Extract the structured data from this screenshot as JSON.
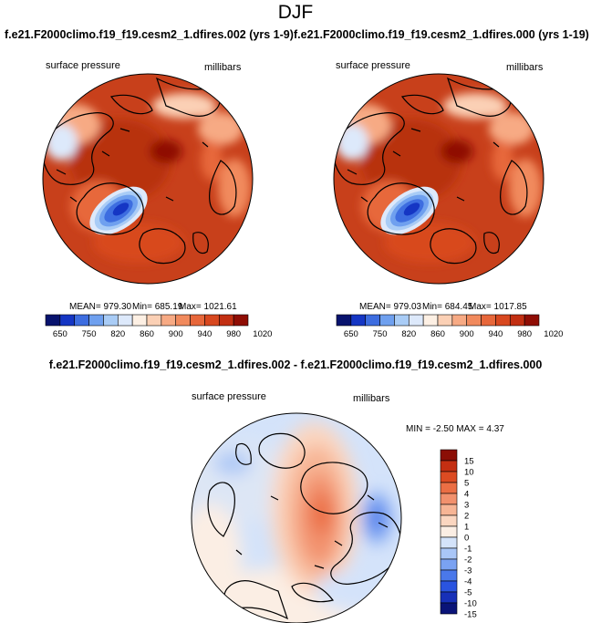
{
  "header": {
    "season": "DJF",
    "case_left": "f.e21.F2000climo.f19_f19.cesm2_1.dfires.002 (yrs 1-9)",
    "case_right": "f.e21.F2000climo.f19_f19.cesm2_1.dfires.000 (yrs 1-19)",
    "diff_title": "f.e21.F2000climo.f19_f19.cesm2_1.dfires.002 - f.e21.F2000climo.f19_f19.cesm2_1.dfires.000"
  },
  "colors": {
    "abs_scale": [
      "#08136e",
      "#1536c4",
      "#3d6de0",
      "#6fa0ef",
      "#a9ccf6",
      "#dde9fb",
      "#fdf0e4",
      "#fbd0b5",
      "#f7aa84",
      "#f18a5d",
      "#e7673a",
      "#d8481f",
      "#c22f12",
      "#8f0d04"
    ],
    "diff_scale": [
      "#0a1478",
      "#1730b8",
      "#2a54e0",
      "#4a78ea",
      "#7aa2f2",
      "#a9c6f7",
      "#d4e3fa",
      "#fbeee4",
      "#fbd6c0",
      "#f7b595",
      "#f2916d",
      "#eb6e44",
      "#dc4b22",
      "#c42f12",
      "#8b0e06"
    ],
    "land_outline": "#000000"
  },
  "chart_data": [
    {
      "type": "heatmap",
      "projection": "north-polar-stereographic",
      "variable": "surface pressure",
      "units": "millibars",
      "mean_label": "MEAN= 979.30",
      "min_label": "Min= 685.19",
      "max_label": "Max= 1021.61",
      "mean": 979.3,
      "min": 685.19,
      "max": 1021.61,
      "colorbar_levels": [
        650,
        700,
        750,
        800,
        820,
        840,
        860,
        880,
        900,
        920,
        940,
        960,
        980,
        1000,
        1020
      ],
      "colorbar_labels": [
        "650",
        "750",
        "820",
        "860",
        "900",
        "940",
        "980",
        "1020"
      ]
    },
    {
      "type": "heatmap",
      "projection": "north-polar-stereographic",
      "variable": "surface pressure",
      "units": "millibars",
      "mean_label": "MEAN= 979.03",
      "min_label": "Min= 684.45",
      "max_label": "Max= 1017.85",
      "mean": 979.03,
      "min": 684.45,
      "max": 1017.85,
      "colorbar_levels": [
        650,
        700,
        750,
        800,
        820,
        840,
        860,
        880,
        900,
        920,
        940,
        960,
        980,
        1000,
        1020
      ],
      "colorbar_labels": [
        "650",
        "750",
        "820",
        "860",
        "900",
        "940",
        "980",
        "1020"
      ]
    },
    {
      "type": "heatmap",
      "projection": "north-polar-stereographic",
      "variable": "surface pressure",
      "units": "millibars",
      "stats_label": "MIN = -2.50 MAX =  4.37",
      "min": -2.5,
      "max": 4.37,
      "colorbar_levels": [
        -15,
        -10,
        -5,
        -4,
        -3,
        -2,
        -1,
        0,
        1,
        2,
        3,
        4,
        5,
        10,
        15
      ],
      "colorbar_labels": [
        "15",
        "10",
        "5",
        "4",
        "3",
        "2",
        "1",
        "0",
        "-1",
        "-2",
        "-3",
        "-4",
        "-5",
        "-10",
        "-15"
      ]
    }
  ]
}
